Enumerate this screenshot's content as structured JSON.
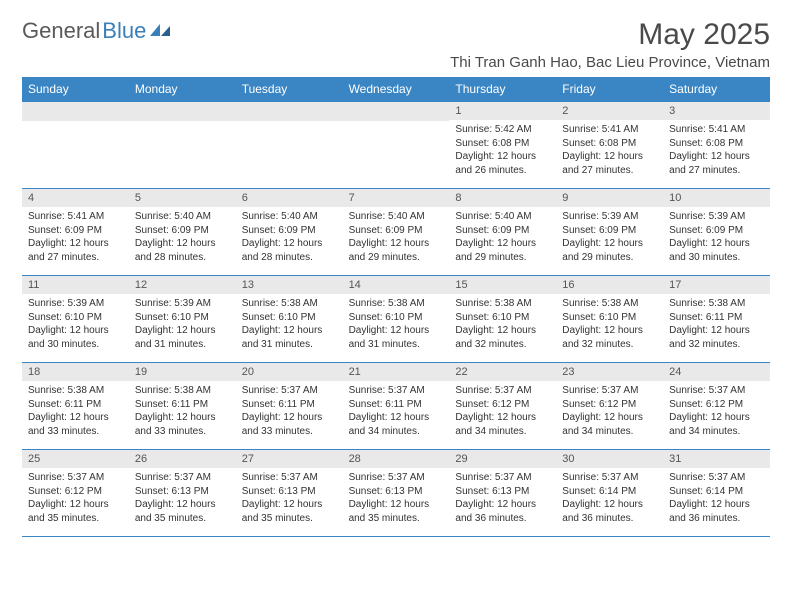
{
  "brand": {
    "part1": "General",
    "part2": "Blue"
  },
  "title": "May 2025",
  "location": "Thi Tran Ganh Hao, Bac Lieu Province, Vietnam",
  "colors": {
    "header_bg": "#3a85c4",
    "header_text": "#ffffff",
    "daynum_bg": "#e9e9e9",
    "border": "#3a85c4",
    "brand_gray": "#5a5a5a",
    "brand_blue": "#3a7fb8",
    "text": "#333333"
  },
  "weekdays": [
    "Sunday",
    "Monday",
    "Tuesday",
    "Wednesday",
    "Thursday",
    "Friday",
    "Saturday"
  ],
  "weeks": [
    [
      {
        "n": "",
        "sr": "",
        "ss": "",
        "dl": ""
      },
      {
        "n": "",
        "sr": "",
        "ss": "",
        "dl": ""
      },
      {
        "n": "",
        "sr": "",
        "ss": "",
        "dl": ""
      },
      {
        "n": "",
        "sr": "",
        "ss": "",
        "dl": ""
      },
      {
        "n": "1",
        "sr": "Sunrise: 5:42 AM",
        "ss": "Sunset: 6:08 PM",
        "dl": "Daylight: 12 hours and 26 minutes."
      },
      {
        "n": "2",
        "sr": "Sunrise: 5:41 AM",
        "ss": "Sunset: 6:08 PM",
        "dl": "Daylight: 12 hours and 27 minutes."
      },
      {
        "n": "3",
        "sr": "Sunrise: 5:41 AM",
        "ss": "Sunset: 6:08 PM",
        "dl": "Daylight: 12 hours and 27 minutes."
      }
    ],
    [
      {
        "n": "4",
        "sr": "Sunrise: 5:41 AM",
        "ss": "Sunset: 6:09 PM",
        "dl": "Daylight: 12 hours and 27 minutes."
      },
      {
        "n": "5",
        "sr": "Sunrise: 5:40 AM",
        "ss": "Sunset: 6:09 PM",
        "dl": "Daylight: 12 hours and 28 minutes."
      },
      {
        "n": "6",
        "sr": "Sunrise: 5:40 AM",
        "ss": "Sunset: 6:09 PM",
        "dl": "Daylight: 12 hours and 28 minutes."
      },
      {
        "n": "7",
        "sr": "Sunrise: 5:40 AM",
        "ss": "Sunset: 6:09 PM",
        "dl": "Daylight: 12 hours and 29 minutes."
      },
      {
        "n": "8",
        "sr": "Sunrise: 5:40 AM",
        "ss": "Sunset: 6:09 PM",
        "dl": "Daylight: 12 hours and 29 minutes."
      },
      {
        "n": "9",
        "sr": "Sunrise: 5:39 AM",
        "ss": "Sunset: 6:09 PM",
        "dl": "Daylight: 12 hours and 29 minutes."
      },
      {
        "n": "10",
        "sr": "Sunrise: 5:39 AM",
        "ss": "Sunset: 6:09 PM",
        "dl": "Daylight: 12 hours and 30 minutes."
      }
    ],
    [
      {
        "n": "11",
        "sr": "Sunrise: 5:39 AM",
        "ss": "Sunset: 6:10 PM",
        "dl": "Daylight: 12 hours and 30 minutes."
      },
      {
        "n": "12",
        "sr": "Sunrise: 5:39 AM",
        "ss": "Sunset: 6:10 PM",
        "dl": "Daylight: 12 hours and 31 minutes."
      },
      {
        "n": "13",
        "sr": "Sunrise: 5:38 AM",
        "ss": "Sunset: 6:10 PM",
        "dl": "Daylight: 12 hours and 31 minutes."
      },
      {
        "n": "14",
        "sr": "Sunrise: 5:38 AM",
        "ss": "Sunset: 6:10 PM",
        "dl": "Daylight: 12 hours and 31 minutes."
      },
      {
        "n": "15",
        "sr": "Sunrise: 5:38 AM",
        "ss": "Sunset: 6:10 PM",
        "dl": "Daylight: 12 hours and 32 minutes."
      },
      {
        "n": "16",
        "sr": "Sunrise: 5:38 AM",
        "ss": "Sunset: 6:10 PM",
        "dl": "Daylight: 12 hours and 32 minutes."
      },
      {
        "n": "17",
        "sr": "Sunrise: 5:38 AM",
        "ss": "Sunset: 6:11 PM",
        "dl": "Daylight: 12 hours and 32 minutes."
      }
    ],
    [
      {
        "n": "18",
        "sr": "Sunrise: 5:38 AM",
        "ss": "Sunset: 6:11 PM",
        "dl": "Daylight: 12 hours and 33 minutes."
      },
      {
        "n": "19",
        "sr": "Sunrise: 5:38 AM",
        "ss": "Sunset: 6:11 PM",
        "dl": "Daylight: 12 hours and 33 minutes."
      },
      {
        "n": "20",
        "sr": "Sunrise: 5:37 AM",
        "ss": "Sunset: 6:11 PM",
        "dl": "Daylight: 12 hours and 33 minutes."
      },
      {
        "n": "21",
        "sr": "Sunrise: 5:37 AM",
        "ss": "Sunset: 6:11 PM",
        "dl": "Daylight: 12 hours and 34 minutes."
      },
      {
        "n": "22",
        "sr": "Sunrise: 5:37 AM",
        "ss": "Sunset: 6:12 PM",
        "dl": "Daylight: 12 hours and 34 minutes."
      },
      {
        "n": "23",
        "sr": "Sunrise: 5:37 AM",
        "ss": "Sunset: 6:12 PM",
        "dl": "Daylight: 12 hours and 34 minutes."
      },
      {
        "n": "24",
        "sr": "Sunrise: 5:37 AM",
        "ss": "Sunset: 6:12 PM",
        "dl": "Daylight: 12 hours and 34 minutes."
      }
    ],
    [
      {
        "n": "25",
        "sr": "Sunrise: 5:37 AM",
        "ss": "Sunset: 6:12 PM",
        "dl": "Daylight: 12 hours and 35 minutes."
      },
      {
        "n": "26",
        "sr": "Sunrise: 5:37 AM",
        "ss": "Sunset: 6:13 PM",
        "dl": "Daylight: 12 hours and 35 minutes."
      },
      {
        "n": "27",
        "sr": "Sunrise: 5:37 AM",
        "ss": "Sunset: 6:13 PM",
        "dl": "Daylight: 12 hours and 35 minutes."
      },
      {
        "n": "28",
        "sr": "Sunrise: 5:37 AM",
        "ss": "Sunset: 6:13 PM",
        "dl": "Daylight: 12 hours and 35 minutes."
      },
      {
        "n": "29",
        "sr": "Sunrise: 5:37 AM",
        "ss": "Sunset: 6:13 PM",
        "dl": "Daylight: 12 hours and 36 minutes."
      },
      {
        "n": "30",
        "sr": "Sunrise: 5:37 AM",
        "ss": "Sunset: 6:14 PM",
        "dl": "Daylight: 12 hours and 36 minutes."
      },
      {
        "n": "31",
        "sr": "Sunrise: 5:37 AM",
        "ss": "Sunset: 6:14 PM",
        "dl": "Daylight: 12 hours and 36 minutes."
      }
    ]
  ]
}
